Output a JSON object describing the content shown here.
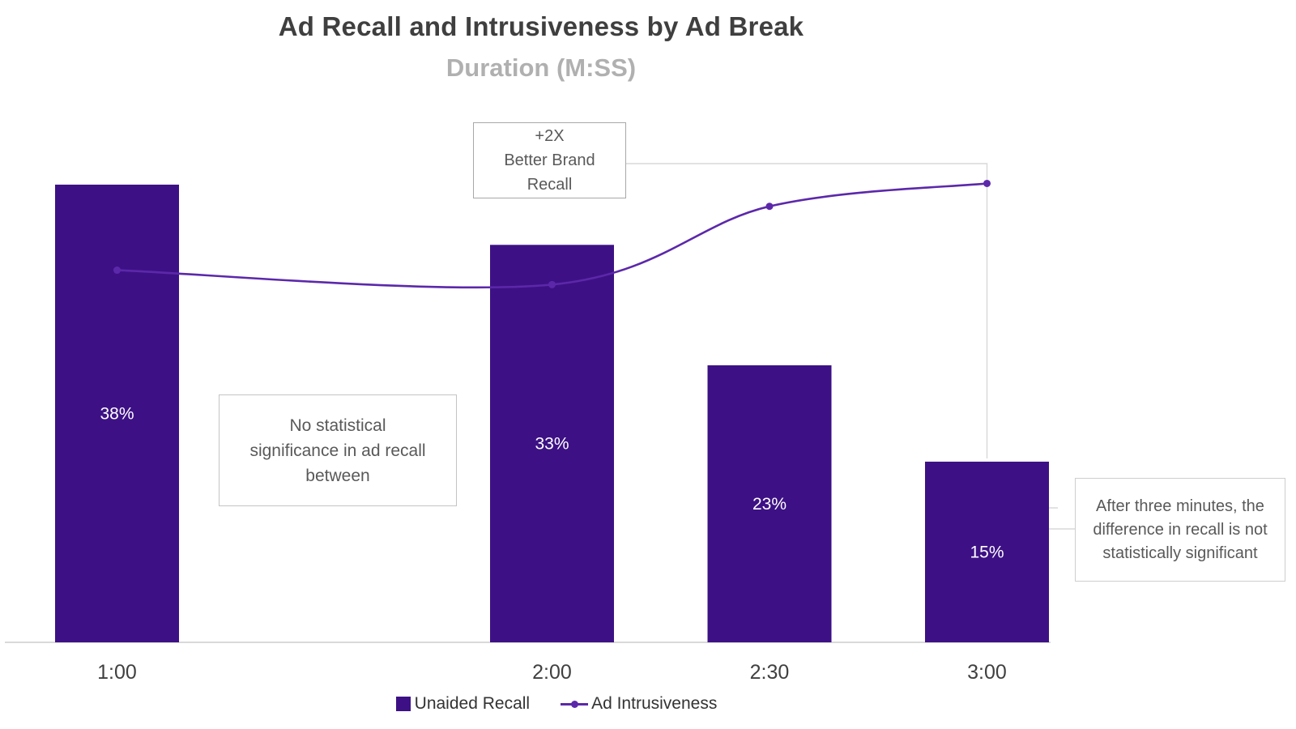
{
  "chart": {
    "title": "Ad Recall and Intrusiveness by Ad Break",
    "subtitle": "Duration (M:SS)"
  },
  "chart_data": {
    "type": "bar",
    "subtype": "bar-line-combo",
    "x_tick_labels": [
      "1:00",
      "2:00",
      "2:30",
      "3:00"
    ],
    "x_seconds": [
      60,
      120,
      150,
      180
    ],
    "x_axis_time_scaled": true,
    "series": [
      {
        "name": "Unaided Recall",
        "type": "bar",
        "values_pct": [
          38,
          33,
          23,
          15
        ],
        "data_labels": [
          "38%",
          "33%",
          "23%",
          "15%"
        ],
        "color": "#3D1185"
      },
      {
        "name": "Ad Intrusiveness",
        "type": "line",
        "marker": "circle",
        "values_pct_est": [
          30.9,
          29.7,
          36.2,
          38.1
        ],
        "values_estimated": true,
        "color": "#5C28AA"
      }
    ],
    "ylim_pct": [
      0,
      53.4
    ],
    "grid": false,
    "y_axis_labels_shown": false,
    "legend_position": "bottom-center",
    "axis_line_color": "#D9D9D9",
    "tick_label_color": "#404040",
    "bar_label_color": "#FFFFFF"
  },
  "annotations": {
    "better_recall": {
      "lines": [
        "+2X",
        "Better Brand",
        "Recall"
      ]
    },
    "no_significance": {
      "lines": [
        "No statistical",
        "significance in ad recall",
        "between"
      ]
    },
    "after_three": {
      "lines": [
        "After three minutes, the",
        "difference in recall is not",
        "statistically significant"
      ]
    }
  },
  "colors": {
    "bar": "#3D1185",
    "line": "#5C28AA",
    "axis": "#D9D9D9",
    "connector": "#D9D9D9",
    "annotation_text": "#595959"
  }
}
